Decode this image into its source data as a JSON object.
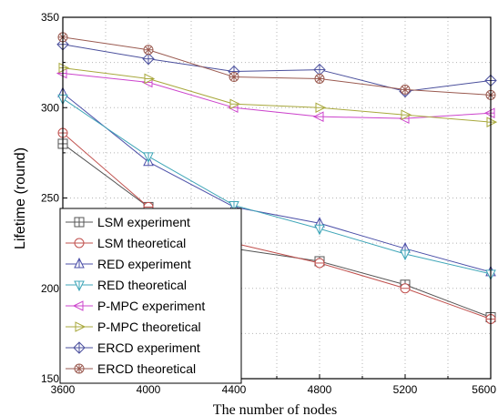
{
  "chart_data": {
    "type": "line",
    "xlabel": "The number of nodes",
    "ylabel": "Lifetime  (round)",
    "x": [
      3600,
      4000,
      4400,
      4800,
      5200,
      5600
    ],
    "xlim": [
      3600,
      5600
    ],
    "ylim": [
      150,
      350
    ],
    "xticks": [
      3600,
      4000,
      4400,
      4800,
      5200,
      5600
    ],
    "yticks": [
      150,
      200,
      250,
      300,
      350
    ],
    "grid": "dotted",
    "legend_position": "bottom-left",
    "series": [
      {
        "name": "LSM experiment",
        "values": [
          280,
          245,
          222,
          215,
          202,
          184
        ],
        "color": "#555555",
        "marker": "square-plus"
      },
      {
        "name": "LSM theoretical",
        "values": [
          286,
          245,
          225,
          214,
          200,
          183
        ],
        "color": "#c0504d",
        "marker": "circle-line"
      },
      {
        "name": "RED experiment",
        "values": [
          308,
          270,
          245,
          236,
          222,
          209
        ],
        "color": "#4b4fa8",
        "marker": "triangle-up"
      },
      {
        "name": "RED theoretical",
        "values": [
          305,
          273,
          246,
          233,
          219,
          208
        ],
        "color": "#3fa6b8",
        "marker": "triangle-down"
      },
      {
        "name": "P-MPC experiment",
        "values": [
          319,
          314,
          300,
          295,
          294,
          297
        ],
        "color": "#cc44cc",
        "marker": "triangle-left"
      },
      {
        "name": "P-MPC theoretical",
        "values": [
          322,
          316,
          302,
          300,
          296,
          292
        ],
        "color": "#a8a83c",
        "marker": "triangle-right"
      },
      {
        "name": "ERCD experiment",
        "values": [
          335,
          327,
          320,
          321,
          309,
          315
        ],
        "color": "#4a4f9c",
        "marker": "diamond-cross"
      },
      {
        "name": "ERCD theoretical",
        "values": [
          339,
          332,
          317,
          316,
          310,
          307
        ],
        "color": "#9a5a50",
        "marker": "circle-star"
      }
    ]
  }
}
